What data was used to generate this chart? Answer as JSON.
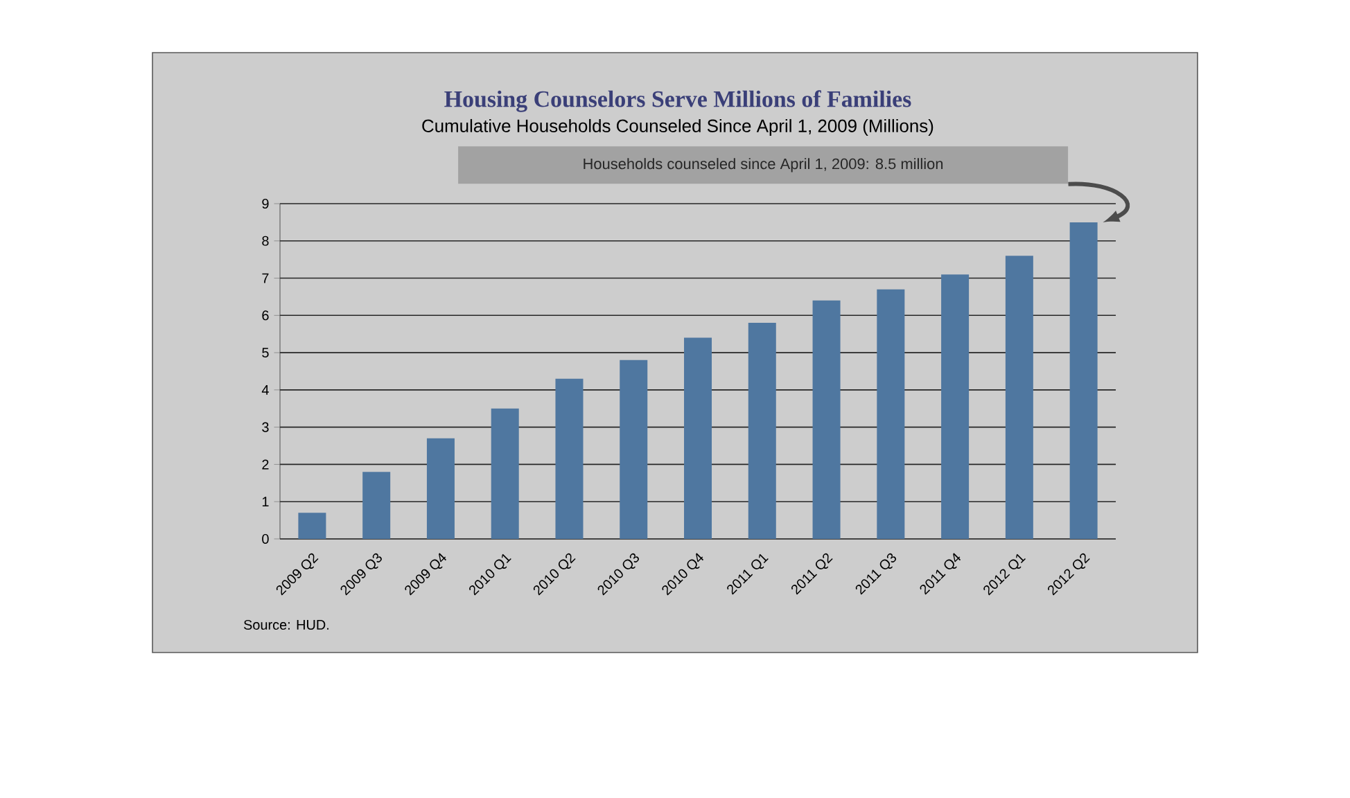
{
  "chart_data": {
    "type": "bar",
    "title": "Housing Counselors Serve Millions of Families",
    "subtitle": "Cumulative Households Counseled Since April 1, 2009 (Millions)",
    "categories": [
      "2009 Q2",
      "2009 Q3",
      "2009 Q4",
      "2010 Q1",
      "2010 Q2",
      "2010 Q3",
      "2010 Q4",
      "2011 Q1",
      "2011 Q2",
      "2011 Q3",
      "2011 Q4",
      "2012 Q1",
      "2012 Q2"
    ],
    "values": [
      0.7,
      1.8,
      2.7,
      3.5,
      4.3,
      4.8,
      5.4,
      5.8,
      6.4,
      6.7,
      7.1,
      7.6,
      8.5
    ],
    "color": "#4f77a0",
    "ylim": [
      0,
      9
    ],
    "yticks": [
      0,
      1,
      2,
      3,
      4,
      5,
      6,
      7,
      8,
      9
    ],
    "grid": "y",
    "annotations": [
      "Households counseled  since  April 1, 2009: 8.5 million",
      "Source:  HUD."
    ]
  }
}
